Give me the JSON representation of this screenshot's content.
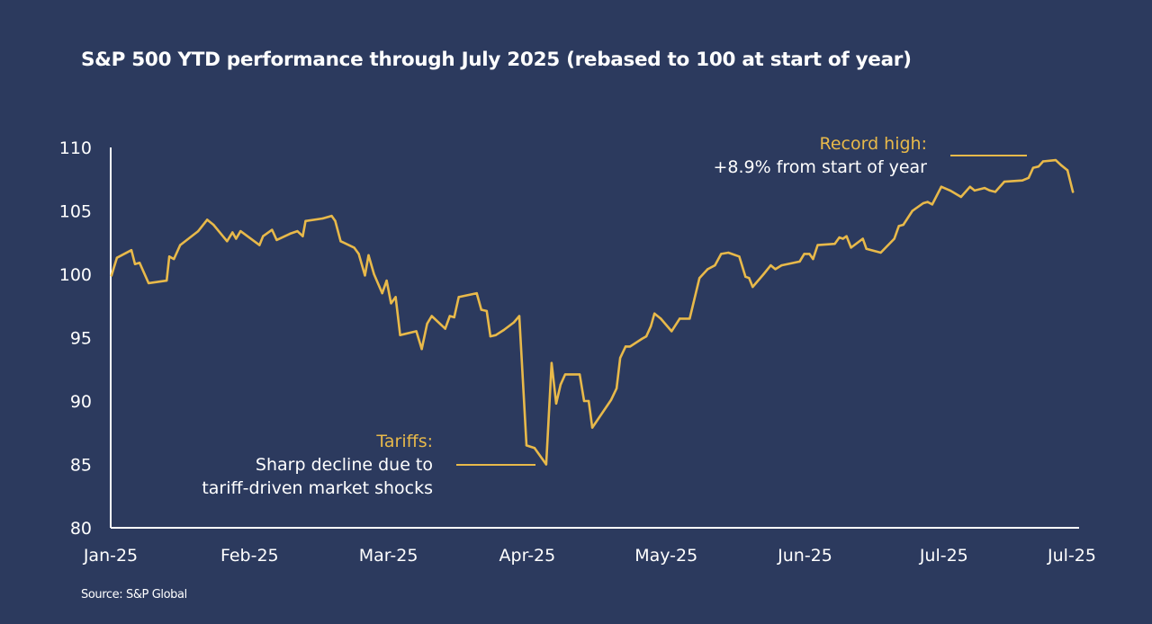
{
  "title": "S&P 500 YTD performance through July 2025 (rebased to 100 at start of year)",
  "source": "Source: S&P Global",
  "colors": {
    "background": "#2c3a5e",
    "line": "#e8b94a",
    "axis": "#ffffff",
    "text": "#ffffff",
    "annotation_title": "#e8b94a"
  },
  "chart_data": {
    "type": "line",
    "title": "S&P 500 YTD performance through July 2025 (rebased to 100 at start of year)",
    "xlabel": "",
    "ylabel": "",
    "ylim": [
      80,
      110
    ],
    "yticks": [
      80,
      85,
      90,
      95,
      100,
      105,
      110
    ],
    "xlim_months": [
      0,
      6.98
    ],
    "xticks": [
      {
        "label": "Jan-25",
        "month": 0
      },
      {
        "label": "Feb-25",
        "month": 1
      },
      {
        "label": "Mar-25",
        "month": 2
      },
      {
        "label": "Apr-25",
        "month": 3
      },
      {
        "label": "May-25",
        "month": 4
      },
      {
        "label": "Jun-25",
        "month": 5
      },
      {
        "label": "Jul-25",
        "month": 6
      },
      {
        "label": "Jul-25",
        "month": 7
      }
    ],
    "grid": false,
    "legend": "none",
    "series": [
      {
        "name": "S&P 500 (rebased)",
        "x_months": [
          0.006,
          0.045,
          0.149,
          0.175,
          0.208,
          0.273,
          0.403,
          0.422,
          0.455,
          0.5,
          0.63,
          0.695,
          0.74,
          0.838,
          0.877,
          0.903,
          0.935,
          1.071,
          1.097,
          1.162,
          1.195,
          1.292,
          1.344,
          1.383,
          1.403,
          1.526,
          1.591,
          1.617,
          1.656,
          1.753,
          1.786,
          1.786,
          1.831,
          1.857,
          1.896,
          1.955,
          1.987,
          2.019,
          2.052,
          2.084,
          2.201,
          2.24,
          2.279,
          2.312,
          2.409,
          2.442,
          2.474,
          2.506,
          2.636,
          2.669,
          2.708,
          2.734,
          2.773,
          2.831,
          2.903,
          2.942,
          2.994,
          3.052,
          3.136,
          3.175,
          3.208,
          3.24,
          3.273,
          3.377,
          3.409,
          3.442,
          3.468,
          3.604,
          3.643,
          3.669,
          3.708,
          3.74,
          3.825,
          3.857,
          3.89,
          3.916,
          3.961,
          4.039,
          4.097,
          4.169,
          4.24,
          4.299,
          4.351,
          4.396,
          4.448,
          4.526,
          4.571,
          4.597,
          4.623,
          4.701,
          4.753,
          4.786,
          4.831,
          4.961,
          4.994,
          5.032,
          5.058,
          5.091,
          5.214,
          5.247,
          5.273,
          5.299,
          5.331,
          5.416,
          5.442,
          5.545,
          5.643,
          5.675,
          5.708,
          5.773,
          5.851,
          5.883,
          5.916,
          5.981,
          6.045,
          6.123,
          6.188,
          6.221,
          6.292,
          6.331,
          6.37,
          6.435,
          6.565,
          6.61,
          6.643,
          6.682,
          6.714,
          6.805,
          6.844,
          6.89,
          6.929
        ],
        "values": [
          99.9,
          101.3,
          101.9,
          100.8,
          100.9,
          99.3,
          99.5,
          101.4,
          101.2,
          102.3,
          103.4,
          104.3,
          103.9,
          102.6,
          103.3,
          102.8,
          103.4,
          102.3,
          103.0,
          103.5,
          102.7,
          103.2,
          103.4,
          103.0,
          104.2,
          104.4,
          104.6,
          104.2,
          102.6,
          102.1,
          101.6,
          101.6,
          99.9,
          101.5,
          100.0,
          98.5,
          99.5,
          97.7,
          98.2,
          95.2,
          95.5,
          94.1,
          96.1,
          96.7,
          95.7,
          96.7,
          96.6,
          98.2,
          98.5,
          97.2,
          97.1,
          95.1,
          95.2,
          95.6,
          96.2,
          96.7,
          86.5,
          86.3,
          85.0,
          93.0,
          89.8,
          91.3,
          92.1,
          92.1,
          90.0,
          90.0,
          87.9,
          90.1,
          91.0,
          93.4,
          94.3,
          94.3,
          94.9,
          95.1,
          95.9,
          96.9,
          96.5,
          95.5,
          96.5,
          96.5,
          99.7,
          100.4,
          100.7,
          101.6,
          101.7,
          101.4,
          99.8,
          99.7,
          99.0,
          100.0,
          100.7,
          100.4,
          100.7,
          101.0,
          101.6,
          101.6,
          101.2,
          102.3,
          102.4,
          102.9,
          102.8,
          103.0,
          102.1,
          102.8,
          102.0,
          101.7,
          102.8,
          103.8,
          103.9,
          105.0,
          105.6,
          105.7,
          105.5,
          106.9,
          106.6,
          106.1,
          106.9,
          106.6,
          106.8,
          106.6,
          106.5,
          107.3,
          107.4,
          107.6,
          108.4,
          108.5,
          108.9,
          109.0,
          108.6,
          108.2,
          106.5
        ]
      }
    ],
    "annotations": [
      {
        "id": "record-high",
        "title": "Record high:",
        "body": [
          "+8.9% from start of year"
        ],
        "value": 108.9
      },
      {
        "id": "tariffs",
        "title": "Tariffs:",
        "body": [
          "Sharp decline due to",
          "tariff-driven market shocks"
        ],
        "value": 85.0
      }
    ]
  }
}
